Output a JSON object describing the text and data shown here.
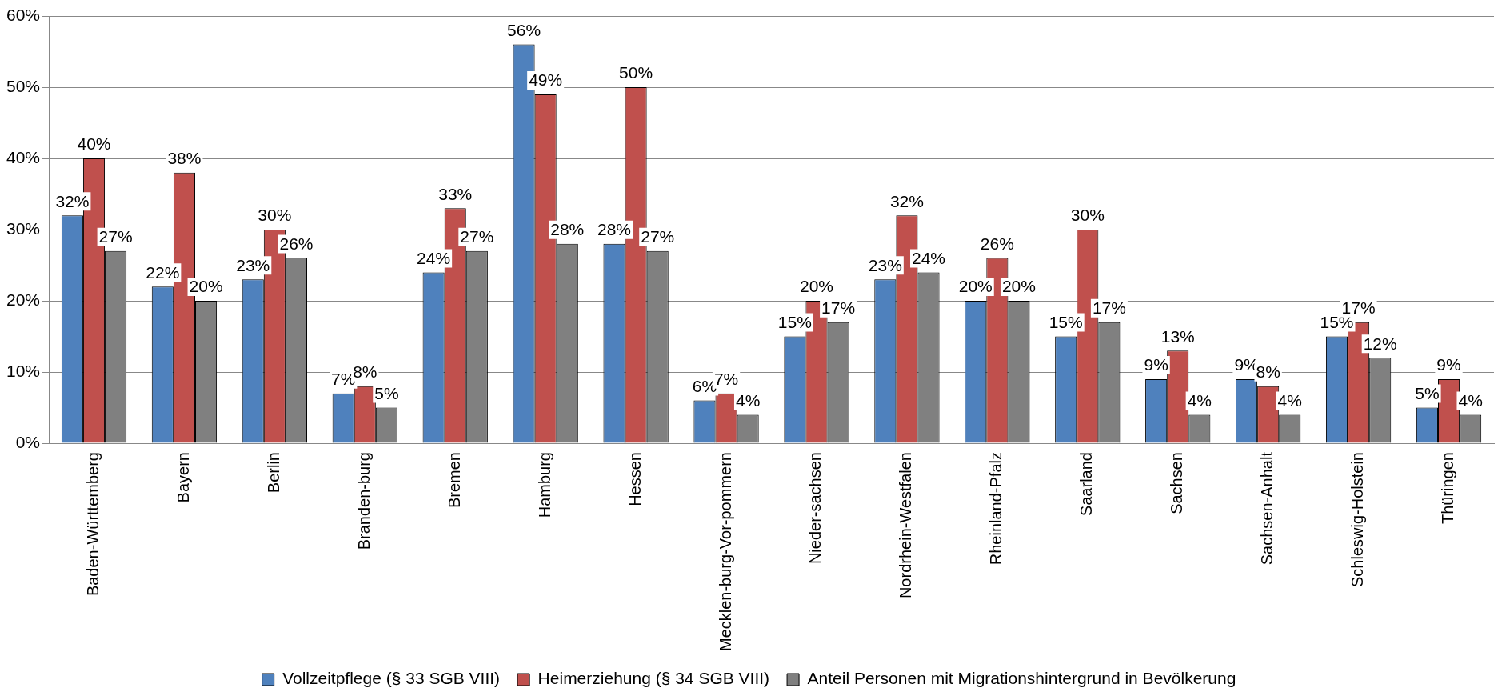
{
  "chart_data": {
    "type": "bar",
    "categories": [
      "Baden-Württemberg",
      "Bayern",
      "Berlin",
      "Branden-burg",
      "Bremen",
      "Hamburg",
      "Hessen",
      "Mecklen-burg-Vor-pommern",
      "Nieder-sachsen",
      "Nordrhein-Westfalen",
      "Rheinland-Pfalz",
      "Saarland",
      "Sachsen",
      "Sachsen-Anhalt",
      "Schleswig-Holstein",
      "Thüringen"
    ],
    "series": [
      {
        "name": "Vollzeitpflege (§ 33 SGB VIII)",
        "color": "#4f81bd",
        "values": [
          32,
          22,
          23,
          7,
          24,
          56,
          28,
          6,
          15,
          23,
          20,
          15,
          9,
          9,
          15,
          5
        ],
        "value_labels": [
          "32%",
          "22%",
          "23%",
          "7%",
          "24%",
          "56%",
          "28%",
          "6%",
          "15%",
          "23%",
          "20%",
          "15%",
          "9%",
          "9%",
          "15%",
          "5%"
        ]
      },
      {
        "name": "Heimerziehung (§ 34 SGB VIII)",
        "color": "#c0504d",
        "values": [
          40,
          38,
          30,
          8,
          33,
          49,
          50,
          7,
          20,
          32,
          26,
          30,
          13,
          8,
          17,
          9
        ],
        "value_labels": [
          "40%",
          "38%",
          "30%",
          "8%",
          "33%",
          "49%",
          "50%",
          "7%",
          "20%",
          "32%",
          "26%",
          "30%",
          "13%",
          "8%",
          "17%",
          "9%"
        ]
      },
      {
        "name": "Anteil Personen mit Migrationshintergrund in Bevölkerung",
        "color": "#808080",
        "values": [
          27,
          20,
          26,
          5,
          27,
          28,
          27,
          4,
          17,
          24,
          20,
          17,
          4,
          4,
          12,
          4
        ],
        "value_labels": [
          "27%",
          "20%",
          "26%",
          "5%",
          "27%",
          "28%",
          "27%",
          "4%",
          "17%",
          "24%",
          "20%",
          "17%",
          "4%",
          "4%",
          "12%",
          "4%"
        ]
      }
    ],
    "ylim": [
      0,
      60
    ],
    "yticks": [
      {
        "value": 0,
        "label": "0%"
      },
      {
        "value": 10,
        "label": "10%"
      },
      {
        "value": 20,
        "label": "20%"
      },
      {
        "value": 30,
        "label": "30%"
      },
      {
        "value": 40,
        "label": "40%"
      },
      {
        "value": 50,
        "label": "50%"
      },
      {
        "value": 60,
        "label": "60%"
      }
    ],
    "grid": "y",
    "legend": "bottom"
  }
}
